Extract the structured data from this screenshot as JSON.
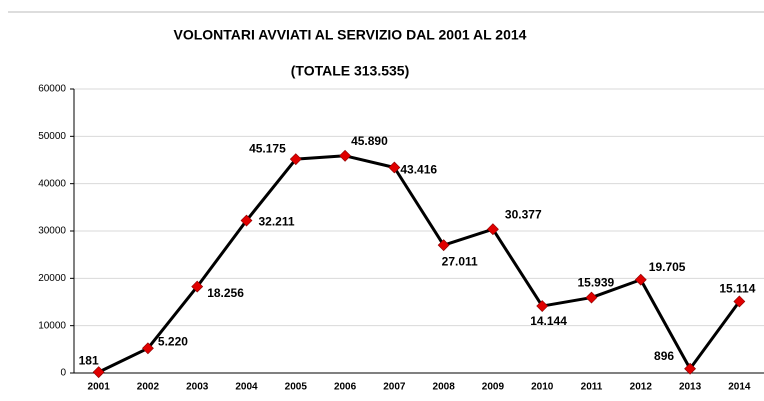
{
  "chart_data": {
    "type": "line",
    "title": "VOLONTARI AVVIATI AL SERVIZIO DAL 2001 AL 2014",
    "subtitle": "(TOTALE 313.535)",
    "categories": [
      "2001",
      "2002",
      "2003",
      "2004",
      "2005",
      "2006",
      "2007",
      "2008",
      "2009",
      "2010",
      "2011",
      "2012",
      "2013",
      "2014"
    ],
    "series": [
      {
        "name": "Volontari",
        "color": "#000000",
        "marker_color": "#e00000",
        "values": [
          181,
          5220,
          18256,
          32211,
          45175,
          45890,
          43416,
          27011,
          30377,
          14144,
          15939,
          19705,
          896,
          15114
        ],
        "value_labels": [
          "181",
          "5.220",
          "18.256",
          "32.211",
          "45.175",
          "45.890",
          "43.416",
          "27.011",
          "30.377",
          "14.144",
          "15.939",
          "19.705",
          "896",
          "15.114"
        ]
      }
    ],
    "ylim": [
      0,
      60000
    ],
    "yticks": [
      0,
      10000,
      20000,
      30000,
      40000,
      50000,
      60000
    ],
    "grid": true
  }
}
